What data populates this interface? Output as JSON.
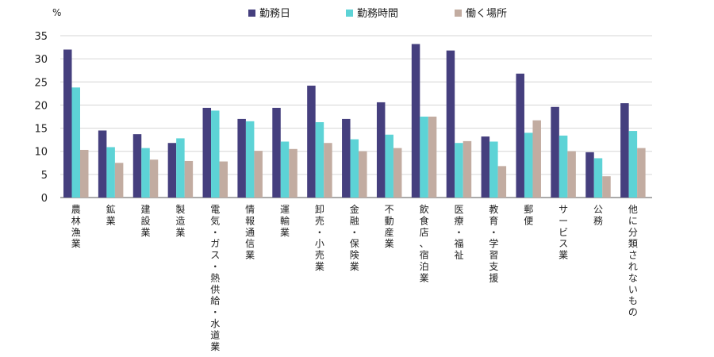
{
  "chart_data": {
    "type": "bar",
    "y_unit": "%",
    "ylim": [
      0,
      35
    ],
    "y_ticks": [
      0,
      5,
      10,
      15,
      20,
      25,
      30,
      35
    ],
    "grid": true,
    "legend_position": "top-center",
    "categories": [
      "農林漁業",
      "鉱業",
      "建設業",
      "製造業",
      "電気・ガス・熱供給・水道業",
      "情報通信業",
      "運輸業",
      "卸売・小売業",
      "金融・保険業",
      "不動産業",
      "飲食店、宿泊業",
      "医療・福祉",
      "教育・学習支援",
      "郵便",
      "サービス業",
      "公務",
      "他に分類されないもの"
    ],
    "series": [
      {
        "name": "勤務日",
        "color": "#453f7e",
        "values": [
          32.0,
          14.5,
          13.7,
          11.8,
          19.4,
          17.0,
          19.4,
          24.2,
          17.0,
          20.6,
          33.2,
          31.8,
          13.2,
          26.8,
          19.6,
          9.8,
          20.4
        ]
      },
      {
        "name": "勤務時間",
        "color": "#5dd3d6",
        "values": [
          23.8,
          10.9,
          10.7,
          12.8,
          18.8,
          16.5,
          12.1,
          16.3,
          12.6,
          13.6,
          17.5,
          11.8,
          12.1,
          14.0,
          13.4,
          8.5,
          14.4
        ]
      },
      {
        "name": "働く場所",
        "color": "#c2aca1",
        "values": [
          10.3,
          7.5,
          8.2,
          7.9,
          7.8,
          10.1,
          10.5,
          11.8,
          10.0,
          10.7,
          17.5,
          12.2,
          6.8,
          16.7,
          10.0,
          4.6,
          10.7
        ]
      }
    ]
  }
}
